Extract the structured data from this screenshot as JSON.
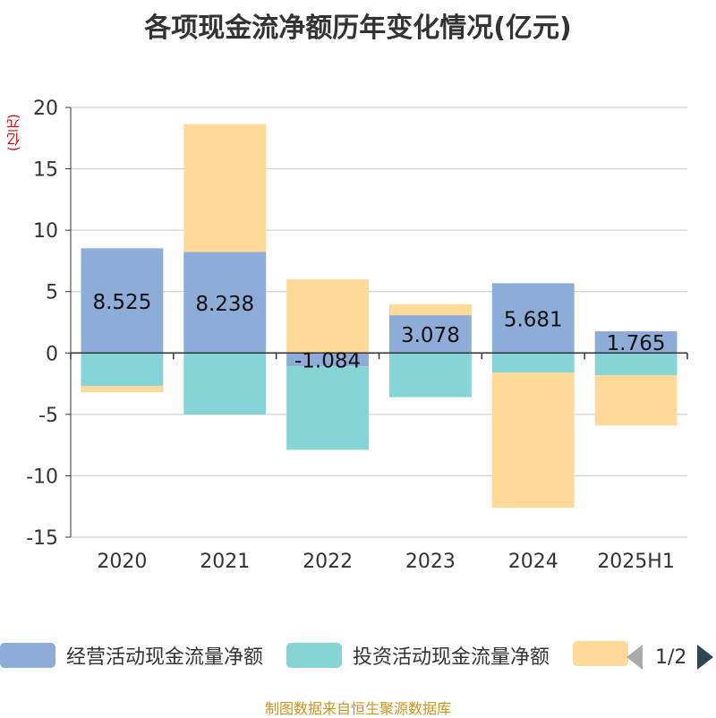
{
  "chart_data": {
    "type": "bar",
    "stacked": true,
    "title": "各项现金流净额历年变化情况(亿元)",
    "unit_label": "(亿元)",
    "categories": [
      "2020",
      "2021",
      "2022",
      "2023",
      "2024",
      "2025H1"
    ],
    "ylim": [
      -15,
      20
    ],
    "yticks": [
      20,
      15,
      10,
      5,
      0,
      -5,
      -10,
      -15
    ],
    "grid": true,
    "legend_position": "bottom",
    "series": [
      {
        "name": "经营活动现金流量净额",
        "color": "#8eacd8",
        "values": [
          8.525,
          8.238,
          -1.084,
          3.078,
          5.681,
          1.765
        ],
        "show_labels": true
      },
      {
        "name": "投资活动现金流量净额",
        "color": "#85d5d6",
        "values": [
          -2.7,
          -5.0,
          -6.8,
          -3.6,
          -1.6,
          -1.8
        ],
        "show_labels": false
      },
      {
        "name": "",
        "color": "#fed998",
        "values": [
          -0.5,
          10.4,
          6.0,
          0.9,
          -11.0,
          -4.1
        ],
        "show_labels": false
      }
    ]
  },
  "legend": {
    "items": [
      {
        "label": "经营活动现金流量净额",
        "color": "#8eacd8"
      },
      {
        "label": "投资活动现金流量净额",
        "color": "#85d5d6"
      },
      {
        "label": "",
        "color": "#fed998"
      }
    ],
    "pager_text": "1/2"
  },
  "source": "制图数据来自恒生聚源数据库"
}
